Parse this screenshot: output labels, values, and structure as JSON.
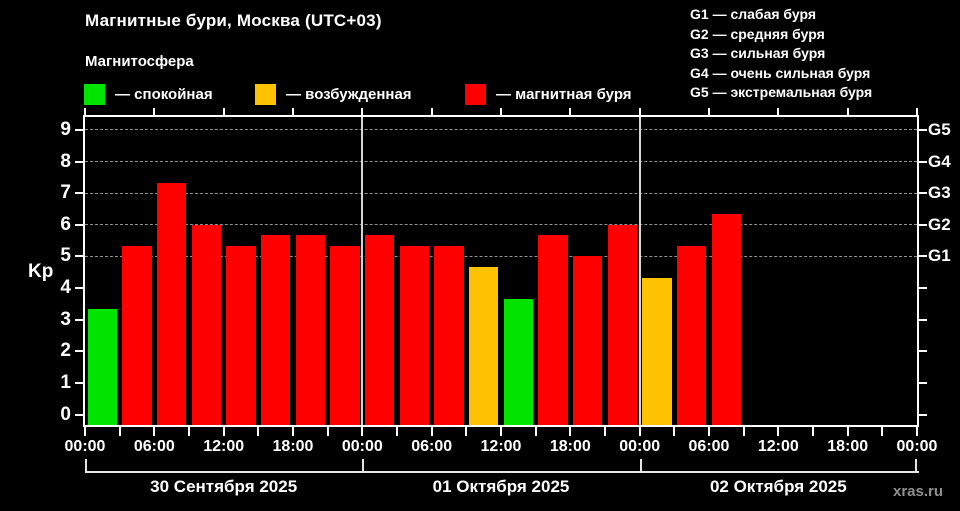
{
  "header": {
    "title": "Магнитные бури, Москва (UTC+03)",
    "subtitle": "Магнитосфера",
    "legend": [
      {
        "name": "quiet",
        "label": "— спокойная",
        "color": "#00e400"
      },
      {
        "name": "excited",
        "label": "— возбужденная",
        "color": "#ffc200"
      },
      {
        "name": "storm",
        "label": "— магнитная буря",
        "color": "#ff0000"
      }
    ]
  },
  "g_scale_legend": [
    "G1 — слабая буря",
    "G2 — средняя буря",
    "G3 — сильная буря",
    "G4 — очень сильная буря",
    "G5 — экстремальная буря"
  ],
  "watermark": "xras.ru",
  "chart_data": {
    "type": "bar",
    "title": "Магнитные бури, Москва (UTC+03)",
    "ylabel": "Kp",
    "ylim": [
      -0.33,
      9.41
    ],
    "yticks": [
      0,
      1,
      2,
      3,
      4,
      5,
      6,
      7,
      8,
      9
    ],
    "gridlines_at": [
      5,
      6,
      7,
      8,
      9
    ],
    "grid_style": "dashed",
    "right_axis_labels": [
      {
        "value": 5,
        "label": "G1"
      },
      {
        "value": 6,
        "label": "G2"
      },
      {
        "value": 7,
        "label": "G3"
      },
      {
        "value": 8,
        "label": "G4"
      },
      {
        "value": 9,
        "label": "G5"
      }
    ],
    "hours_per_bar": 3,
    "x_tick_labels_6h": [
      "00:00",
      "06:00",
      "12:00",
      "18:00",
      "00:00",
      "06:00",
      "12:00",
      "18:00",
      "00:00",
      "06:00",
      "12:00",
      "18:00",
      "00:00"
    ],
    "color_rule": {
      "quiet_below": 4,
      "excited_below": 5
    },
    "days": [
      {
        "label": "30 Сентября 2025",
        "kp_values": [
          3.33,
          5.33,
          7.33,
          6.0,
          5.33,
          5.67,
          5.67,
          5.33
        ]
      },
      {
        "label": "01 Октября 2025",
        "kp_values": [
          5.67,
          5.33,
          5.33,
          4.67,
          3.67,
          5.67,
          5.0,
          6.0
        ]
      },
      {
        "label": "02 Октября 2025",
        "kp_values": [
          4.33,
          5.33,
          6.33,
          null,
          null,
          null,
          null,
          null
        ]
      }
    ]
  }
}
